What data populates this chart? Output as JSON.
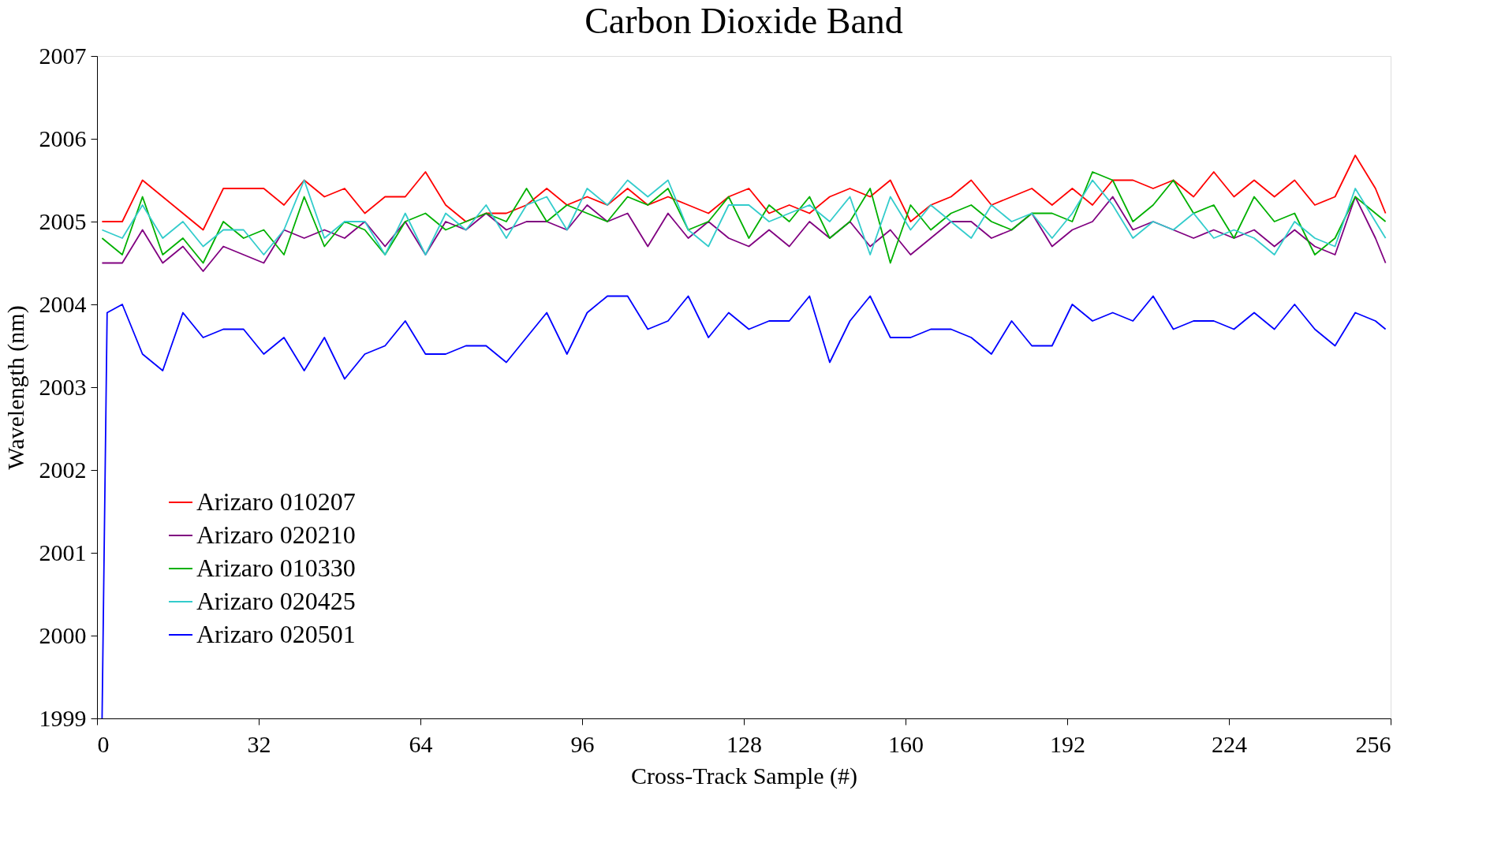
{
  "chart_data": {
    "type": "line",
    "title": "Carbon Dioxide Band",
    "xlabel": "Cross-Track Sample (#)",
    "ylabel": "Wavelength (nm)",
    "xlim": [
      0,
      256
    ],
    "xticks": [
      0,
      32,
      64,
      96,
      128,
      160,
      192,
      224,
      256
    ],
    "ylim": [
      1999,
      2007
    ],
    "yticks": [
      1999,
      2000,
      2001,
      2002,
      2003,
      2004,
      2005,
      2006,
      2007
    ],
    "legend": "bottom left",
    "x": [
      1,
      5,
      9,
      13,
      17,
      21,
      25,
      29,
      33,
      37,
      41,
      45,
      49,
      53,
      57,
      61,
      65,
      69,
      73,
      77,
      81,
      85,
      89,
      93,
      97,
      101,
      105,
      109,
      113,
      117,
      121,
      125,
      129,
      133,
      137,
      141,
      145,
      149,
      153,
      157,
      161,
      165,
      169,
      173,
      177,
      181,
      185,
      189,
      193,
      197,
      201,
      205,
      209,
      213,
      217,
      221,
      225,
      229,
      233,
      237,
      241,
      245,
      249,
      253,
      255
    ],
    "series": [
      {
        "name": "Arizaro 010207",
        "color": "#ff0000",
        "values": [
          2005.0,
          2005.0,
          2005.5,
          2005.3,
          2005.1,
          2004.9,
          2005.4,
          2005.4,
          2005.4,
          2005.2,
          2005.5,
          2005.3,
          2005.4,
          2005.1,
          2005.3,
          2005.3,
          2005.6,
          2005.2,
          2005.0,
          2005.1,
          2005.1,
          2005.2,
          2005.4,
          2005.2,
          2005.3,
          2005.2,
          2005.4,
          2005.2,
          2005.3,
          2005.2,
          2005.1,
          2005.3,
          2005.4,
          2005.1,
          2005.2,
          2005.1,
          2005.3,
          2005.4,
          2005.3,
          2005.5,
          2005.0,
          2005.2,
          2005.3,
          2005.5,
          2005.2,
          2005.3,
          2005.4,
          2005.2,
          2005.4,
          2005.2,
          2005.5,
          2005.5,
          2005.4,
          2005.5,
          2005.3,
          2005.6,
          2005.3,
          2005.5,
          2005.3,
          2005.5,
          2005.2,
          2005.3,
          2005.8,
          2005.4,
          2005.1
        ]
      },
      {
        "name": "Arizaro 020210",
        "color": "#800080",
        "values": [
          2004.5,
          2004.5,
          2004.9,
          2004.5,
          2004.7,
          2004.4,
          2004.7,
          2004.6,
          2004.5,
          2004.9,
          2004.8,
          2004.9,
          2004.8,
          2005.0,
          2004.7,
          2005.0,
          2004.6,
          2005.0,
          2004.9,
          2005.1,
          2004.9,
          2005.0,
          2005.0,
          2004.9,
          2005.2,
          2005.0,
          2005.1,
          2004.7,
          2005.1,
          2004.8,
          2005.0,
          2004.8,
          2004.7,
          2004.9,
          2004.7,
          2005.0,
          2004.8,
          2005.0,
          2004.7,
          2004.9,
          2004.6,
          2004.8,
          2005.0,
          2005.0,
          2004.8,
          2004.9,
          2005.1,
          2004.7,
          2004.9,
          2005.0,
          2005.3,
          2004.9,
          2005.0,
          2004.9,
          2004.8,
          2004.9,
          2004.8,
          2004.9,
          2004.7,
          2004.9,
          2004.7,
          2004.6,
          2005.3,
          2004.8,
          2004.5
        ]
      },
      {
        "name": "Arizaro 010330",
        "color": "#00b000",
        "values": [
          2004.8,
          2004.6,
          2005.3,
          2004.6,
          2004.8,
          2004.5,
          2005.0,
          2004.8,
          2004.9,
          2004.6,
          2005.3,
          2004.7,
          2005.0,
          2004.9,
          2004.6,
          2005.0,
          2005.1,
          2004.9,
          2005.0,
          2005.1,
          2005.0,
          2005.4,
          2005.0,
          2005.2,
          2005.1,
          2005.0,
          2005.3,
          2005.2,
          2005.4,
          2004.9,
          2005.0,
          2005.3,
          2004.8,
          2005.2,
          2005.0,
          2005.3,
          2004.8,
          2005.0,
          2005.4,
          2004.5,
          2005.2,
          2004.9,
          2005.1,
          2005.2,
          2005.0,
          2004.9,
          2005.1,
          2005.1,
          2005.0,
          2005.6,
          2005.5,
          2005.0,
          2005.2,
          2005.5,
          2005.1,
          2005.2,
          2004.8,
          2005.3,
          2005.0,
          2005.1,
          2004.6,
          2004.8,
          2005.3,
          2005.1,
          2005.0
        ]
      },
      {
        "name": "Arizaro 020425",
        "color": "#33cccc",
        "values": [
          2004.9,
          2004.8,
          2005.2,
          2004.8,
          2005.0,
          2004.7,
          2004.9,
          2004.9,
          2004.6,
          2004.9,
          2005.5,
          2004.8,
          2005.0,
          2005.0,
          2004.6,
          2005.1,
          2004.6,
          2005.1,
          2004.9,
          2005.2,
          2004.8,
          2005.2,
          2005.3,
          2004.9,
          2005.4,
          2005.2,
          2005.5,
          2005.3,
          2005.5,
          2004.9,
          2004.7,
          2005.2,
          2005.2,
          2005.0,
          2005.1,
          2005.2,
          2005.0,
          2005.3,
          2004.6,
          2005.3,
          2004.9,
          2005.2,
          2005.0,
          2004.8,
          2005.2,
          2005.0,
          2005.1,
          2004.8,
          2005.1,
          2005.5,
          2005.2,
          2004.8,
          2005.0,
          2004.9,
          2005.1,
          2004.8,
          2004.9,
          2004.8,
          2004.6,
          2005.0,
          2004.8,
          2004.7,
          2005.4,
          2005.0,
          2004.8
        ]
      },
      {
        "name": "Arizaro 020501",
        "color": "#0000ff",
        "x": [
          1,
          2,
          5,
          9,
          13,
          17,
          21,
          25,
          29,
          33,
          37,
          41,
          45,
          49,
          53,
          57,
          61,
          65,
          69,
          73,
          77,
          81,
          85,
          89,
          93,
          97,
          101,
          105,
          109,
          113,
          117,
          121,
          125,
          129,
          133,
          137,
          141,
          145,
          149,
          153,
          157,
          161,
          165,
          169,
          173,
          177,
          181,
          185,
          189,
          193,
          197,
          201,
          205,
          209,
          213,
          217,
          221,
          225,
          229,
          233,
          237,
          241,
          245,
          249,
          253,
          255
        ],
        "values": [
          1999.0,
          2003.9,
          2004.0,
          2003.4,
          2003.2,
          2003.9,
          2003.6,
          2003.7,
          2003.7,
          2003.4,
          2003.6,
          2003.2,
          2003.6,
          2003.1,
          2003.4,
          2003.5,
          2003.8,
          2003.4,
          2003.4,
          2003.5,
          2003.5,
          2003.3,
          2003.6,
          2003.9,
          2003.4,
          2003.9,
          2004.1,
          2004.1,
          2003.7,
          2003.8,
          2004.1,
          2003.6,
          2003.9,
          2003.7,
          2003.8,
          2003.8,
          2004.1,
          2003.3,
          2003.8,
          2004.1,
          2003.6,
          2003.6,
          2003.7,
          2003.7,
          2003.6,
          2003.4,
          2003.8,
          2003.5,
          2003.5,
          2004.0,
          2003.8,
          2003.9,
          2003.8,
          2004.1,
          2003.7,
          2003.8,
          2003.8,
          2003.7,
          2003.9,
          2003.7,
          2004.0,
          2003.7,
          2003.5,
          2003.9,
          2003.8,
          2003.7
        ]
      }
    ]
  }
}
